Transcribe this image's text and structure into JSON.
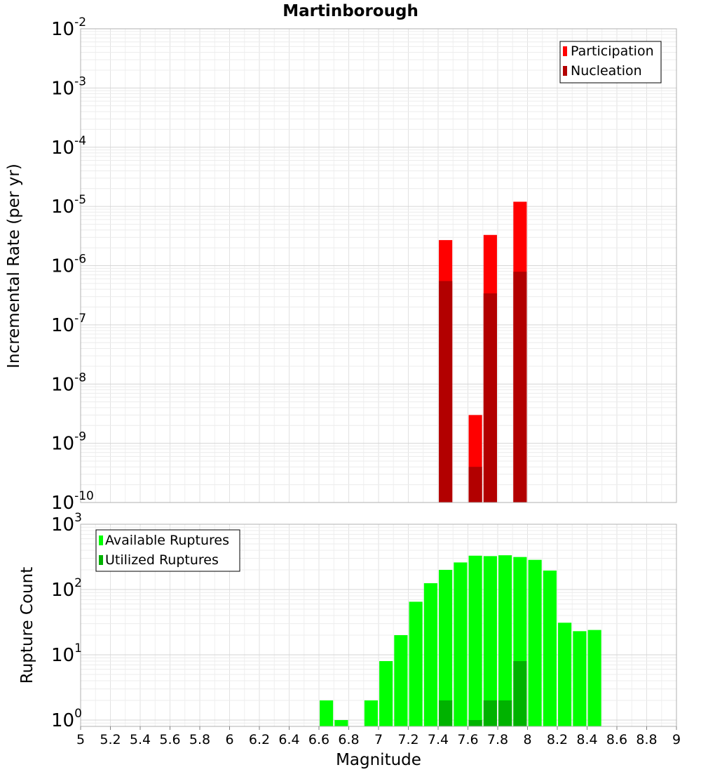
{
  "chart_data": [
    {
      "type": "bar",
      "title": "Martinborough",
      "ylabel": "Incremental Rate (per yr)",
      "yscale": "log",
      "ylim": [
        1e-10,
        0.01
      ],
      "xlim": [
        5,
        9
      ],
      "grid": true,
      "legend": "top-right",
      "y_tick_exponents": [
        "-10",
        "-9",
        "-8",
        "-7",
        "-6",
        "-5",
        "-4",
        "-3",
        "-2"
      ],
      "y_tick_base": "10",
      "series": [
        {
          "name": "Participation",
          "color": "#ff0000",
          "x": [
            7.45,
            7.65,
            7.75,
            7.95
          ],
          "values": [
            2.7e-06,
            3e-09,
            3.3e-06,
            1.2e-05
          ]
        },
        {
          "name": "Nucleation",
          "color": "#b20000",
          "x": [
            7.45,
            7.65,
            7.75,
            7.95
          ],
          "values": [
            5.5e-07,
            4e-10,
            3.4e-07,
            7.9e-07
          ]
        }
      ]
    },
    {
      "type": "bar",
      "ylabel": "Rupture Count",
      "xlabel": "Magnitude",
      "yscale": "log",
      "ylim": [
        0.8,
        1000
      ],
      "xlim": [
        5,
        9
      ],
      "grid": true,
      "legend": "top-left",
      "y_tick_exponents": [
        "0",
        "1",
        "2",
        "3"
      ],
      "y_tick_base": "10",
      "x_tick_labels": [
        "5",
        "5.2",
        "5.4",
        "5.6",
        "5.8",
        "6",
        "6.2",
        "6.4",
        "6.6",
        "6.8",
        "7",
        "7.2",
        "7.4",
        "7.6",
        "7.8",
        "8",
        "8.2",
        "8.4",
        "8.6",
        "8.8",
        "9"
      ],
      "series": [
        {
          "name": "Available Ruptures",
          "color": "#00ff00",
          "x": [
            6.65,
            6.75,
            6.95,
            7.05,
            7.15,
            7.25,
            7.35,
            7.45,
            7.55,
            7.65,
            7.75,
            7.85,
            7.95,
            8.05,
            8.15,
            8.25,
            8.35,
            8.45
          ],
          "values": [
            2,
            1,
            2,
            8,
            20,
            65,
            125,
            200,
            260,
            330,
            325,
            335,
            315,
            285,
            195,
            31,
            23,
            24
          ]
        },
        {
          "name": "Utilized Ruptures",
          "color": "#00b200",
          "x": [
            7.45,
            7.65,
            7.75,
            7.85,
            7.95
          ],
          "values": [
            2,
            1,
            2,
            2,
            8
          ]
        }
      ]
    }
  ]
}
